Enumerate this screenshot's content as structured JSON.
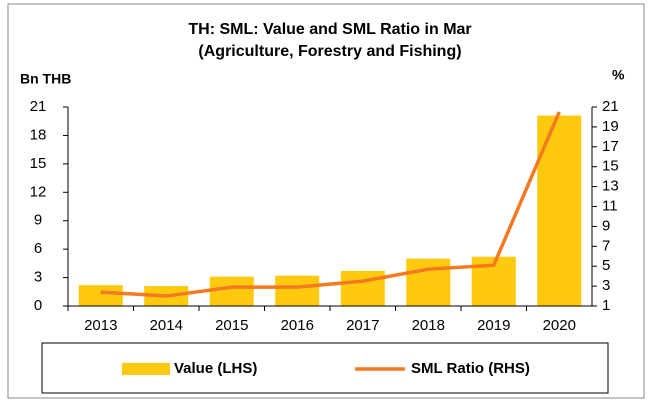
{
  "chart_data": {
    "type": "bar_line",
    "title": "TH: SML: Value and SML Ratio in Mar",
    "subtitle": "(Agriculture, Forestry and Fishing)",
    "y_label": "Bn THB",
    "y2_label": "%",
    "categories": [
      "2013",
      "2014",
      "2015",
      "2016",
      "2017",
      "2018",
      "2019",
      "2020"
    ],
    "series": [
      {
        "name": "Value (LHS)",
        "color": "#ffc90e",
        "kind": "bar",
        "values": [
          2.2,
          2.1,
          3.1,
          3.2,
          3.7,
          5.0,
          5.2,
          20.1
        ]
      },
      {
        "name": "SML Ratio (RHS)",
        "color": "#f47920",
        "kind": "line",
        "axis": "y2",
        "values": [
          2.4,
          2.0,
          2.9,
          2.9,
          3.5,
          4.7,
          5.1,
          20.5
        ]
      }
    ],
    "ylim": [
      0,
      21
    ],
    "yticks": [
      0,
      3,
      6,
      9,
      12,
      15,
      18,
      21
    ],
    "y2lim": [
      1,
      21
    ],
    "y2ticks": [
      1,
      3,
      5,
      7,
      9,
      11,
      13,
      15,
      17,
      19,
      21
    ],
    "grid": false,
    "legend": "bottom"
  }
}
